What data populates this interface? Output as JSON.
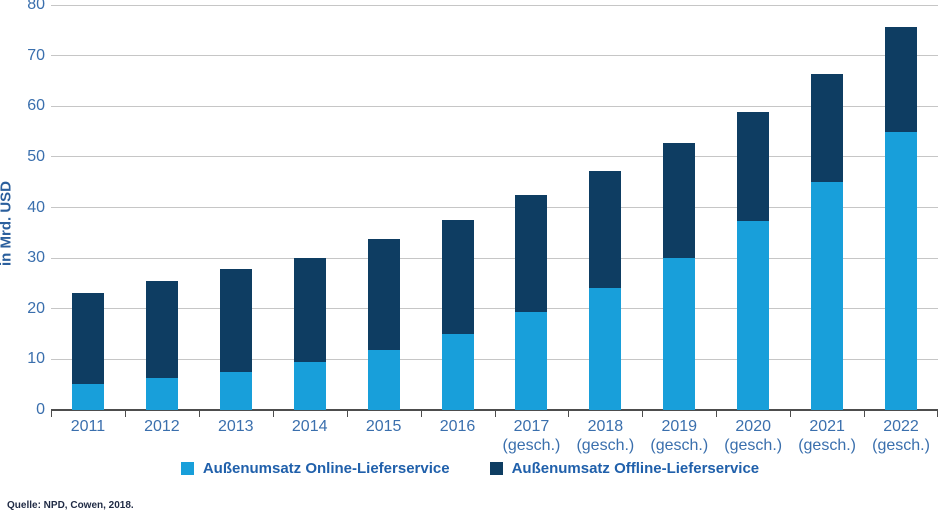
{
  "page": {
    "source": "Quelle: NPD, Cowen, 2018."
  },
  "colors": {
    "online": "#189fda",
    "offline": "#0e3d62",
    "grid": "#c6c6c6",
    "axis": "#4d4d4d",
    "tick_text": "#3a6fad",
    "axis_label_text": "#2b5f9d",
    "legend_text": "#2060ab",
    "source_text": "#1f2a44"
  },
  "chart_data": {
    "type": "bar",
    "stacked": true,
    "ylabel": "in Mrd. USD",
    "ylim": [
      0,
      80
    ],
    "ytick_step": 10,
    "grid": true,
    "legend_position": "bottom-center",
    "categories": [
      "2011",
      "2012",
      "2013",
      "2014",
      "2015",
      "2016",
      "2017",
      "2018",
      "2019",
      "2020",
      "2021",
      "2022"
    ],
    "x_labels": [
      [
        "2011"
      ],
      [
        "2012"
      ],
      [
        "2013"
      ],
      [
        "2014"
      ],
      [
        "2015"
      ],
      [
        "2016"
      ],
      [
        "2017",
        "(gesch.)"
      ],
      [
        "2018",
        "(gesch.)"
      ],
      [
        "2019",
        "(gesch.)"
      ],
      [
        "2020",
        "(gesch.)"
      ],
      [
        "2021",
        "(gesch.)"
      ],
      [
        "2022",
        "(gesch.)"
      ]
    ],
    "series": [
      {
        "name": "Außenumsatz Online-Lieferservice",
        "color_key": "online",
        "values": [
          5.2,
          6.4,
          7.6,
          9.4,
          11.8,
          15.0,
          19.4,
          24.1,
          30.0,
          37.4,
          45.1,
          55.0
        ]
      },
      {
        "name": "Außenumsatz Offline-Lieferservice",
        "color_key": "offline",
        "values": [
          18.0,
          19.1,
          20.2,
          20.7,
          22.0,
          22.6,
          23.1,
          23.1,
          22.8,
          21.4,
          21.3,
          20.7
        ]
      }
    ],
    "totals": [
      23.2,
      25.5,
      27.8,
      30.1,
      33.8,
      37.6,
      42.5,
      47.2,
      52.8,
      58.8,
      66.4,
      75.7
    ]
  }
}
